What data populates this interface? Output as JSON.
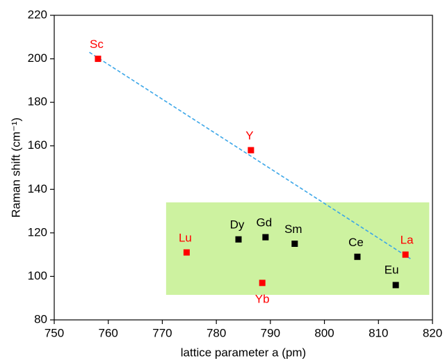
{
  "chart_data": {
    "type": "scatter",
    "x_label": "lattice parameter a (pm)",
    "y_label": "Raman shift (cm⁻¹)",
    "xlim": [
      750,
      820
    ],
    "xticks": [
      750,
      760,
      770,
      780,
      790,
      800,
      810,
      820
    ],
    "ylim": [
      80,
      220
    ],
    "yticks": [
      80,
      100,
      120,
      140,
      160,
      180,
      200,
      220
    ],
    "points": [
      {
        "label": "Sc",
        "x": 758.1,
        "y": 200,
        "color": "#ff0000"
      },
      {
        "label": "Y",
        "x": 786.4,
        "y": 158,
        "color": "#ff0000"
      },
      {
        "label": "Lu",
        "x": 774.5,
        "y": 111,
        "color": "#ff0000"
      },
      {
        "label": "Dy",
        "x": 784.1,
        "y": 117,
        "color": "#000000"
      },
      {
        "label": "Gd",
        "x": 789.1,
        "y": 118,
        "color": "#000000"
      },
      {
        "label": "Sm",
        "x": 794.5,
        "y": 115,
        "color": "#000000"
      },
      {
        "label": "Yb",
        "x": 788.5,
        "y": 97,
        "color": "#ff0000"
      },
      {
        "label": "Ce",
        "x": 806.1,
        "y": 109,
        "color": "#000000"
      },
      {
        "label": "La",
        "x": 815,
        "y": 110,
        "color": "#ff0000"
      },
      {
        "label": "Eu",
        "x": 813.2,
        "y": 96,
        "color": "#000000"
      }
    ],
    "fit_line": {
      "x": [
        756.5,
        816
      ],
      "y": [
        203,
        108
      ],
      "color": "#3aa6e8"
    },
    "highlight": {
      "x": [
        770.7,
        819.4
      ],
      "y": [
        91.5,
        134
      ],
      "color": "#cdf2a0"
    }
  }
}
